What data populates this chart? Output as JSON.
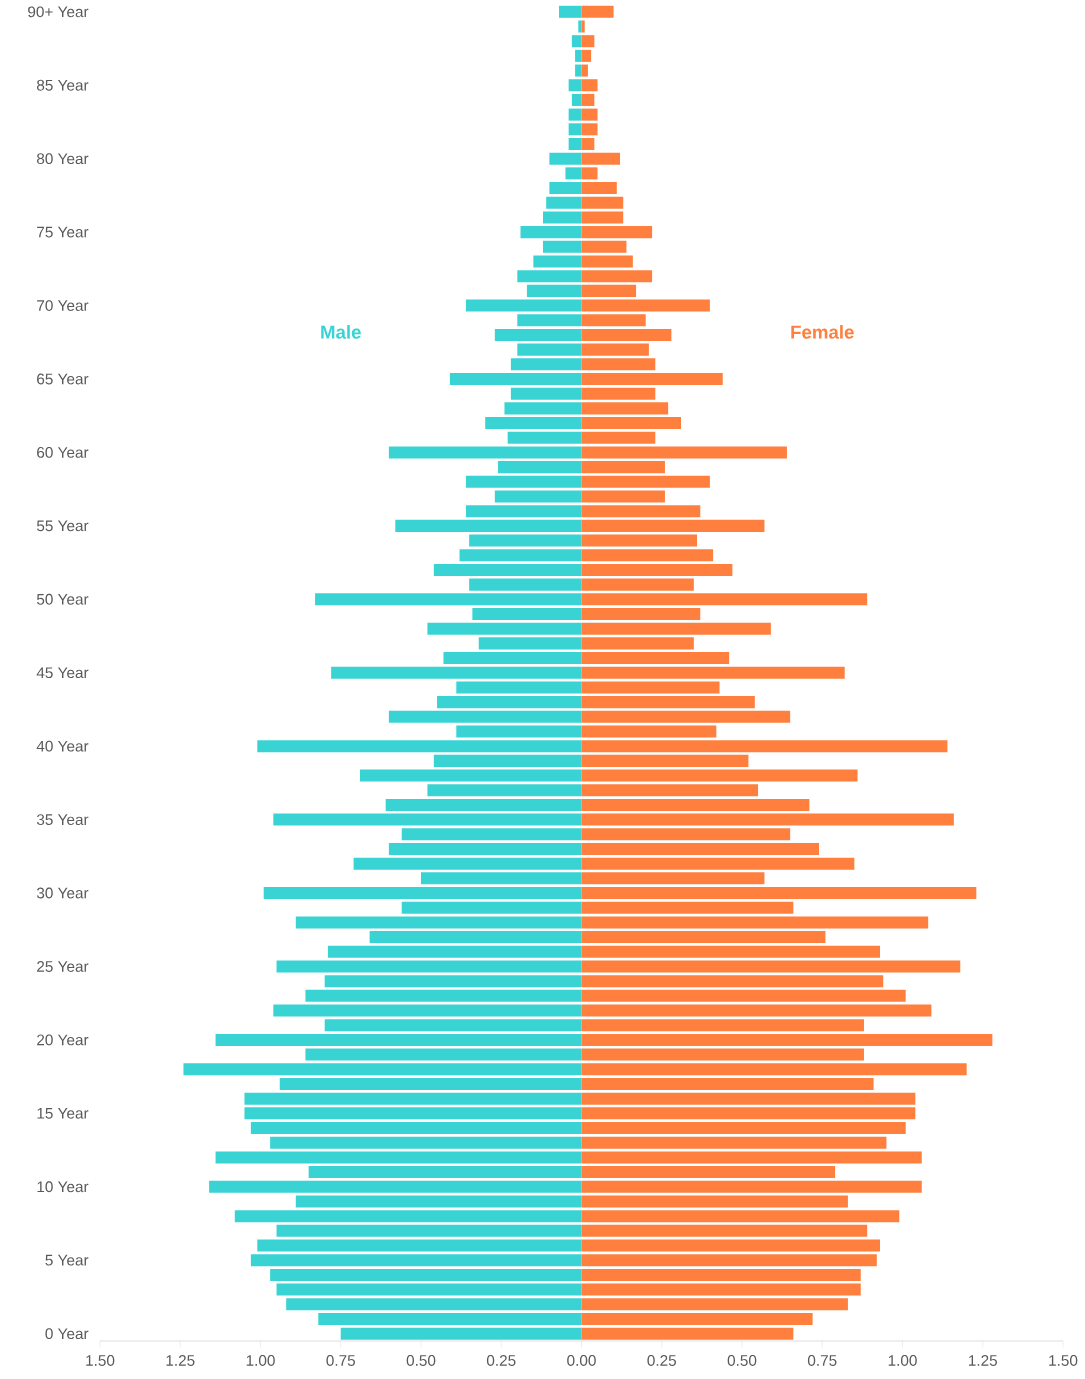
{
  "chart_data": {
    "type": "bar",
    "orientation": "horizontal",
    "stacked": true,
    "categories": [
      "90+ Year",
      null,
      null,
      null,
      null,
      "85 Year",
      null,
      null,
      null,
      null,
      "80 Year",
      null,
      null,
      null,
      null,
      "75 Year",
      null,
      null,
      null,
      null,
      "70 Year",
      null,
      null,
      null,
      null,
      "65 Year",
      null,
      null,
      null,
      null,
      "60 Year",
      null,
      null,
      null,
      null,
      "55 Year",
      null,
      null,
      null,
      null,
      "50 Year",
      null,
      null,
      null,
      null,
      "45 Year",
      null,
      null,
      null,
      null,
      "40 Year",
      null,
      null,
      null,
      null,
      "35 Year",
      null,
      null,
      null,
      null,
      "30 Year",
      null,
      null,
      null,
      null,
      "25 Year",
      null,
      null,
      null,
      null,
      "20 Year",
      null,
      null,
      null,
      null,
      "15 Year",
      null,
      null,
      null,
      null,
      "10 Year",
      null,
      null,
      null,
      null,
      "5 Year",
      null,
      null,
      null,
      null,
      "0 Year"
    ],
    "series": [
      {
        "name": "Male",
        "color": "#3ad3d4",
        "values": [
          -0.07,
          -0.01,
          -0.03,
          -0.02,
          -0.02,
          -0.04,
          -0.03,
          -0.04,
          -0.04,
          -0.04,
          -0.1,
          -0.05,
          -0.1,
          -0.11,
          -0.12,
          -0.19,
          -0.12,
          -0.15,
          -0.2,
          -0.17,
          -0.36,
          -0.2,
          -0.27,
          -0.2,
          -0.22,
          -0.41,
          -0.22,
          -0.24,
          -0.3,
          -0.23,
          -0.6,
          -0.26,
          -0.36,
          -0.27,
          -0.36,
          -0.58,
          -0.35,
          -0.38,
          -0.46,
          -0.35,
          -0.83,
          -0.34,
          -0.48,
          -0.32,
          -0.43,
          -0.78,
          -0.39,
          -0.45,
          -0.6,
          -0.39,
          -1.01,
          -0.46,
          -0.69,
          -0.48,
          -0.61,
          -0.96,
          -0.56,
          -0.6,
          -0.71,
          -0.5,
          -0.99,
          -0.56,
          -0.89,
          -0.66,
          -0.79,
          -0.95,
          -0.8,
          -0.86,
          -0.96,
          -0.8,
          -1.14,
          -0.86,
          -1.24,
          -0.94,
          -1.05,
          -1.05,
          -1.03,
          -0.97,
          -1.14,
          -0.85,
          -1.16,
          -0.89,
          -1.08,
          -0.95,
          -1.01,
          -1.03,
          -0.97,
          -0.95,
          -0.92,
          -0.82,
          -0.75
        ]
      },
      {
        "name": "Female",
        "color": "#fe7f3e",
        "values": [
          0.1,
          0.01,
          0.04,
          0.03,
          0.02,
          0.05,
          0.04,
          0.05,
          0.05,
          0.04,
          0.12,
          0.05,
          0.11,
          0.13,
          0.13,
          0.22,
          0.14,
          0.16,
          0.22,
          0.17,
          0.4,
          0.2,
          0.28,
          0.21,
          0.23,
          0.44,
          0.23,
          0.27,
          0.31,
          0.23,
          0.64,
          0.26,
          0.4,
          0.26,
          0.37,
          0.57,
          0.36,
          0.41,
          0.47,
          0.35,
          0.89,
          0.37,
          0.59,
          0.35,
          0.46,
          0.82,
          0.43,
          0.54,
          0.65,
          0.42,
          1.14,
          0.52,
          0.86,
          0.55,
          0.71,
          1.16,
          0.65,
          0.74,
          0.85,
          0.57,
          1.23,
          0.66,
          1.08,
          0.76,
          0.93,
          1.18,
          0.94,
          1.01,
          1.09,
          0.88,
          1.28,
          0.88,
          1.2,
          0.91,
          1.04,
          1.04,
          1.01,
          0.95,
          1.06,
          0.79,
          1.06,
          0.83,
          0.99,
          0.89,
          0.93,
          0.92,
          0.87,
          0.87,
          0.83,
          0.72,
          0.66
        ]
      }
    ],
    "xlim": [
      -1.5,
      1.5
    ],
    "xticks": [
      {
        "value": -1.5,
        "label": "1.50"
      },
      {
        "value": -1.25,
        "label": "1.25"
      },
      {
        "value": -1.0,
        "label": "1.00"
      },
      {
        "value": -0.75,
        "label": "0.75"
      },
      {
        "value": -0.5,
        "label": "0.50"
      },
      {
        "value": -0.25,
        "label": "0.25"
      },
      {
        "value": 0,
        "label": "0.00"
      },
      {
        "value": 0.25,
        "label": "0.25"
      },
      {
        "value": 0.5,
        "label": "0.50"
      },
      {
        "value": 0.75,
        "label": "0.75"
      },
      {
        "value": 1.0,
        "label": "1.00"
      },
      {
        "value": 1.25,
        "label": "1.25"
      },
      {
        "value": 1.5,
        "label": "1.50"
      }
    ]
  }
}
